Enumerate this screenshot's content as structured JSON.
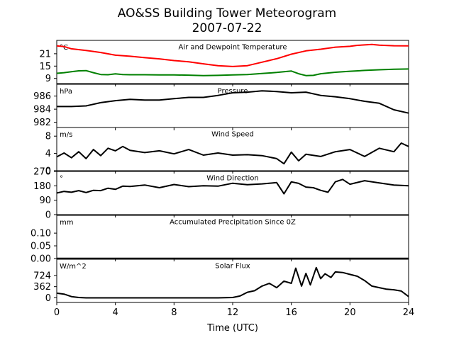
{
  "figure": {
    "title_line1": "AO&SS Building Tower Meteorogram",
    "title_line2": "2007-07-22",
    "xlabel": "Time (UTC)",
    "xticks": [
      "0",
      "4",
      "8",
      "12",
      "16",
      "20",
      "24"
    ]
  },
  "chart_data": [
    {
      "type": "line",
      "title": "Air and Dewpoint Temperature",
      "unit": "°C",
      "xlim": [
        0,
        24
      ],
      "ylim": [
        6.5,
        27.5
      ],
      "yticks": [
        "9",
        "15",
        "21"
      ],
      "ytick_values": [
        9,
        15,
        21
      ],
      "series": [
        {
          "color": "#ff0000",
          "x": [
            0,
            0.5,
            1,
            2,
            3,
            4,
            5,
            6,
            7,
            8,
            9,
            10,
            11,
            12,
            13,
            14,
            15,
            16,
            17,
            18,
            19,
            20,
            20.5,
            21,
            21.5,
            22,
            23,
            24
          ],
          "y": [
            24.8,
            24.5,
            23.4,
            22.6,
            21.6,
            20.3,
            19.8,
            19.1,
            18.5,
            17.7,
            17.1,
            16.1,
            15.2,
            14.8,
            15.2,
            16.9,
            18.6,
            20.8,
            22.4,
            23.2,
            24.2,
            24.6,
            25.1,
            25.3,
            25.5,
            25.2,
            24.9,
            24.8
          ]
        },
        {
          "color": "#008000",
          "x": [
            0,
            0.5,
            1,
            1.5,
            2,
            2.5,
            3,
            3.5,
            4,
            4.5,
            5,
            6,
            7,
            8,
            9,
            10,
            11,
            12,
            13,
            14,
            15,
            16,
            16.5,
            17,
            17.5,
            18,
            19,
            20,
            21,
            22,
            23,
            24
          ],
          "y": [
            11.5,
            11.8,
            12.3,
            12.7,
            12.8,
            11.8,
            10.9,
            10.8,
            11.2,
            10.9,
            10.8,
            10.8,
            10.7,
            10.7,
            10.6,
            10.4,
            10.5,
            10.7,
            10.9,
            11.4,
            11.9,
            12.6,
            11.3,
            10.4,
            10.5,
            11.3,
            12.0,
            12.5,
            12.9,
            13.2,
            13.5,
            13.6
          ]
        }
      ]
    },
    {
      "type": "line",
      "title": "Pressure",
      "unit": "hPa",
      "xlim": [
        0,
        24
      ],
      "ylim": [
        981.2,
        987.8
      ],
      "yticks": [
        "982",
        "984",
        "986"
      ],
      "ytick_values": [
        982,
        984,
        986
      ],
      "series": [
        {
          "color": "#000000",
          "x": [
            0,
            1,
            2,
            3,
            4,
            5,
            6,
            7,
            8,
            9,
            10,
            11,
            12,
            13,
            14,
            15,
            16,
            17,
            18,
            19,
            20,
            21,
            22,
            23,
            24
          ],
          "y": [
            984.4,
            984.4,
            984.5,
            985.0,
            985.3,
            985.5,
            985.4,
            985.4,
            985.6,
            985.8,
            985.8,
            986.1,
            986.5,
            986.6,
            986.8,
            986.7,
            986.5,
            986.6,
            986.1,
            985.9,
            985.6,
            985.2,
            984.9,
            983.9,
            983.4
          ]
        }
      ]
    },
    {
      "type": "line",
      "title": "Wind Speed",
      "unit": "m/s",
      "xlim": [
        0,
        24
      ],
      "ylim": [
        0,
        10
      ],
      "yticks": [
        "0",
        "4",
        "8"
      ],
      "ytick_values": [
        0,
        4,
        8
      ],
      "series": [
        {
          "color": "#000000",
          "x": [
            0,
            0.5,
            1,
            1.5,
            2,
            2.5,
            3,
            3.5,
            4,
            4.5,
            5,
            6,
            7,
            8,
            9,
            10,
            11,
            12,
            13,
            14,
            15,
            15.5,
            16,
            16.5,
            17,
            18,
            19,
            20,
            21,
            22,
            23,
            23.5,
            24
          ],
          "y": [
            3.2,
            4.1,
            3.0,
            4.4,
            2.8,
            4.9,
            3.5,
            5.2,
            4.6,
            5.6,
            4.7,
            4.2,
            4.6,
            3.9,
            4.9,
            3.6,
            4.1,
            3.6,
            3.7,
            3.5,
            2.8,
            1.6,
            4.3,
            2.3,
            3.8,
            3.3,
            4.4,
            4.9,
            3.3,
            5.2,
            4.4,
            6.4,
            5.6
          ]
        }
      ]
    },
    {
      "type": "line",
      "title": "Wind Direction",
      "unit": "°",
      "xlim": [
        0,
        24
      ],
      "ylim": [
        0,
        270
      ],
      "yticks": [
        "0",
        "90",
        "180",
        "270"
      ],
      "ytick_values": [
        0,
        90,
        180,
        270
      ],
      "series": [
        {
          "color": "#000000",
          "x": [
            0,
            0.5,
            1,
            1.5,
            2,
            2.5,
            3,
            3.5,
            4,
            4.5,
            5,
            6,
            7,
            8,
            9,
            10,
            11,
            12,
            13,
            14,
            15,
            15.5,
            16,
            16.5,
            17,
            17.5,
            18,
            18.5,
            19,
            19.5,
            20,
            21,
            22,
            23,
            24
          ],
          "y": [
            135,
            145,
            140,
            150,
            138,
            152,
            150,
            165,
            158,
            178,
            176,
            185,
            168,
            188,
            175,
            180,
            178,
            196,
            187,
            192,
            200,
            130,
            205,
            195,
            172,
            168,
            152,
            140,
            205,
            220,
            190,
            212,
            198,
            185,
            180
          ]
        }
      ]
    },
    {
      "type": "line",
      "title": "Accumulated Precipitation Since 0Z",
      "unit": "mm",
      "xlim": [
        0,
        24
      ],
      "ylim": [
        0,
        0.17
      ],
      "yticks": [
        "0.00",
        "0.05",
        "0.10"
      ],
      "ytick_values": [
        0,
        0.05,
        0.1
      ],
      "series": [
        {
          "color": "#000000",
          "x": [
            0,
            24
          ],
          "y": [
            0,
            0
          ]
        }
      ]
    },
    {
      "type": "line",
      "title": "Solar Flux",
      "unit": "W/m^2",
      "xlim": [
        0,
        24
      ],
      "ylim": [
        -150,
        1250
      ],
      "yticks": [
        "0",
        "362",
        "724"
      ],
      "ytick_values": [
        0,
        362,
        724
      ],
      "series": [
        {
          "color": "#000000",
          "x": [
            0,
            0.5,
            1,
            1.5,
            2,
            4,
            8,
            11,
            12,
            12.5,
            13,
            13.5,
            14,
            14.5,
            15,
            15.5,
            16,
            16.3,
            16.7,
            17,
            17.3,
            17.7,
            18,
            18.3,
            18.7,
            19,
            19.5,
            20,
            20.5,
            21,
            21.5,
            22,
            22.5,
            23,
            23.5,
            24
          ],
          "y": [
            150,
            120,
            40,
            10,
            0,
            0,
            0,
            0,
            10,
            60,
            180,
            230,
            380,
            470,
            330,
            540,
            470,
            960,
            380,
            790,
            420,
            980,
            620,
            780,
            660,
            840,
            820,
            760,
            700,
            560,
            380,
            330,
            280,
            260,
            220,
            40
          ]
        }
      ]
    }
  ]
}
